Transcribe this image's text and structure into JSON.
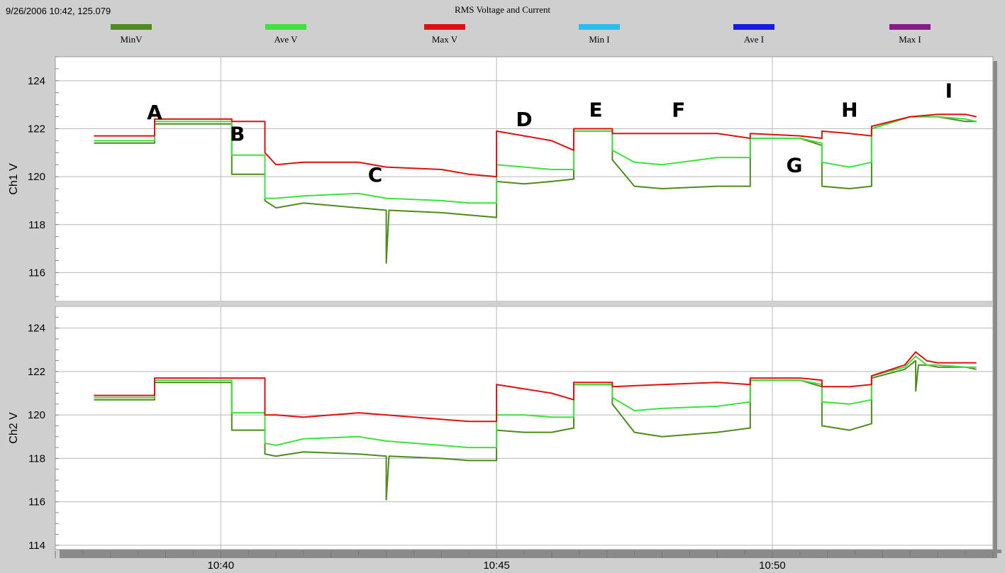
{
  "header": {
    "status": "9/26/2006 10:42, 125.079"
  },
  "chart_data": {
    "type": "line",
    "title": "RMS Voltage and Current",
    "legend_position": "top",
    "grid": true,
    "legend": [
      {
        "name": "MinV",
        "color": "#4e8a1e"
      },
      {
        "name": "Ave V",
        "color": "#3fe03f"
      },
      {
        "name": "Max V",
        "color": "#dd1111"
      },
      {
        "name": "Min I",
        "color": "#2bbcf0"
      },
      {
        "name": "Ave I",
        "color": "#1a1adc"
      },
      {
        "name": "Max I",
        "color": "#8a1a8a"
      }
    ],
    "x_ticks": [
      "10:40",
      "10:45",
      "10:50"
    ],
    "x_tick_minutes": [
      40,
      45,
      50
    ],
    "x_range_minutes": [
      37,
      54
    ],
    "panels": [
      {
        "ylabel": "Ch1 V",
        "ylim": [
          114.8,
          125
        ],
        "y_ticks": [
          116,
          118,
          120,
          122,
          124
        ],
        "annotations": [
          {
            "text": "A",
            "x": 38.8,
            "y": 122.4
          },
          {
            "text": "B",
            "x": 40.3,
            "y": 121.5
          },
          {
            "text": "C",
            "x": 42.8,
            "y": 119.8
          },
          {
            "text": "D",
            "x": 45.5,
            "y": 122.1
          },
          {
            "text": "E",
            "x": 46.8,
            "y": 122.5
          },
          {
            "text": "F",
            "x": 48.3,
            "y": 122.5
          },
          {
            "text": "G",
            "x": 50.4,
            "y": 120.2
          },
          {
            "text": "H",
            "x": 51.4,
            "y": 122.5
          },
          {
            "text": "I",
            "x": 53.2,
            "y": 123.3
          }
        ],
        "series": [
          {
            "name": "Max V",
            "x": [
              37.7,
              38.8,
              38.8,
              40.2,
              40.2,
              40.8,
              40.8,
              41.0,
              41.5,
              42.5,
              43.0,
              44.0,
              44.5,
              45.0,
              45.0,
              45.5,
              46.0,
              46.4,
              46.4,
              47.1,
              47.1,
              48.0,
              49.0,
              49.6,
              49.6,
              50.5,
              50.9,
              50.9,
              51.4,
              51.8,
              51.8,
              52.5,
              53.0,
              53.5,
              53.7
            ],
            "y": [
              121.7,
              121.7,
              122.4,
              122.4,
              122.3,
              122.3,
              121.0,
              120.5,
              120.6,
              120.6,
              120.4,
              120.3,
              120.1,
              120.0,
              121.9,
              121.7,
              121.5,
              121.1,
              122.0,
              122.0,
              121.8,
              121.8,
              121.8,
              121.6,
              121.8,
              121.7,
              121.6,
              121.9,
              121.8,
              121.7,
              122.1,
              122.5,
              122.6,
              122.6,
              122.5
            ]
          },
          {
            "name": "Ave V",
            "x": [
              37.7,
              38.8,
              38.8,
              40.2,
              40.2,
              40.8,
              40.8,
              41.0,
              41.5,
              42.5,
              43.0,
              44.0,
              44.5,
              45.0,
              45.0,
              45.5,
              46.0,
              46.4,
              46.4,
              47.1,
              47.1,
              47.5,
              48.0,
              49.0,
              49.6,
              49.6,
              50.5,
              50.9,
              50.9,
              51.4,
              51.8,
              51.8,
              52.5,
              53.0,
              53.5,
              53.7
            ],
            "y": [
              121.5,
              121.5,
              122.3,
              122.3,
              120.9,
              120.9,
              119.1,
              119.1,
              119.2,
              119.3,
              119.1,
              119.0,
              118.9,
              118.9,
              120.5,
              120.4,
              120.3,
              120.3,
              121.9,
              121.9,
              121.1,
              120.6,
              120.5,
              120.8,
              120.8,
              121.6,
              121.6,
              121.4,
              120.6,
              120.4,
              120.6,
              122.0,
              122.5,
              122.5,
              122.4,
              122.3
            ]
          },
          {
            "name": "MinV",
            "x": [
              37.7,
              38.8,
              38.8,
              40.2,
              40.2,
              40.8,
              40.8,
              41.0,
              41.5,
              42.5,
              43.0,
              43.0,
              43.05,
              43.05,
              44.0,
              44.5,
              45.0,
              45.0,
              45.5,
              46.0,
              46.4,
              46.4,
              47.1,
              47.1,
              47.5,
              48.0,
              49.0,
              49.6,
              49.6,
              50.5,
              50.9,
              50.9,
              51.4,
              51.8,
              51.8,
              52.5,
              53.0,
              53.5,
              53.7
            ],
            "y": [
              121.4,
              121.4,
              122.2,
              122.2,
              120.1,
              120.1,
              119.0,
              118.7,
              118.9,
              118.7,
              118.6,
              116.4,
              118.6,
              118.6,
              118.5,
              118.4,
              118.3,
              119.8,
              119.7,
              119.8,
              119.9,
              121.9,
              121.9,
              120.7,
              119.6,
              119.5,
              119.6,
              119.6,
              121.6,
              121.6,
              121.3,
              119.6,
              119.5,
              119.6,
              122.0,
              122.5,
              122.5,
              122.3,
              122.3
            ]
          }
        ]
      },
      {
        "ylabel": "Ch2 V",
        "ylim": [
          113.8,
          125
        ],
        "y_ticks": [
          114,
          116,
          118,
          120,
          122,
          124
        ],
        "annotations": [],
        "series": [
          {
            "name": "Max V",
            "x": [
              37.7,
              38.8,
              38.8,
              40.2,
              40.2,
              40.8,
              40.8,
              41.0,
              41.5,
              42.5,
              43.0,
              44.0,
              44.5,
              45.0,
              45.0,
              45.5,
              46.0,
              46.4,
              46.4,
              47.1,
              47.1,
              48.0,
              49.0,
              49.6,
              49.6,
              50.5,
              50.9,
              50.9,
              51.4,
              51.8,
              51.8,
              52.4,
              52.6,
              52.8,
              53.0,
              53.5,
              53.7
            ],
            "y": [
              120.9,
              120.9,
              121.7,
              121.7,
              121.7,
              121.7,
              120.0,
              120.0,
              119.9,
              120.1,
              120.0,
              119.8,
              119.7,
              119.7,
              121.4,
              121.2,
              121.0,
              120.7,
              121.5,
              121.5,
              121.3,
              121.4,
              121.5,
              121.4,
              121.7,
              121.7,
              121.6,
              121.3,
              121.3,
              121.4,
              121.8,
              122.3,
              122.9,
              122.5,
              122.4,
              122.4,
              122.4
            ]
          },
          {
            "name": "Ave V",
            "x": [
              37.7,
              38.8,
              38.8,
              40.2,
              40.2,
              40.8,
              40.8,
              41.0,
              41.5,
              42.5,
              43.0,
              44.0,
              44.5,
              45.0,
              45.0,
              45.5,
              46.0,
              46.4,
              46.4,
              47.1,
              47.1,
              47.5,
              48.0,
              49.0,
              49.6,
              49.6,
              50.5,
              50.9,
              50.9,
              51.4,
              51.8,
              51.8,
              52.4,
              52.6,
              52.8,
              53.0,
              53.5,
              53.7
            ],
            "y": [
              120.8,
              120.8,
              121.6,
              121.6,
              120.1,
              120.1,
              118.7,
              118.6,
              118.9,
              119.0,
              118.8,
              118.6,
              118.5,
              118.5,
              120.0,
              120.0,
              119.9,
              119.9,
              121.4,
              121.4,
              120.8,
              120.2,
              120.3,
              120.4,
              120.6,
              121.6,
              121.6,
              121.4,
              120.6,
              120.5,
              120.7,
              121.8,
              122.2,
              122.7,
              122.3,
              122.3,
              122.2,
              122.2
            ]
          },
          {
            "name": "MinV",
            "x": [
              37.7,
              38.8,
              38.8,
              40.2,
              40.2,
              40.8,
              40.8,
              41.0,
              41.5,
              42.5,
              43.0,
              43.0,
              43.05,
              43.05,
              44.0,
              44.5,
              45.0,
              45.0,
              45.5,
              46.0,
              46.4,
              46.4,
              47.1,
              47.1,
              47.5,
              48.0,
              49.0,
              49.6,
              49.6,
              50.5,
              50.9,
              50.9,
              51.4,
              51.8,
              51.8,
              52.4,
              52.6,
              52.6,
              52.65,
              52.8,
              53.0,
              53.5,
              53.7
            ],
            "y": [
              120.7,
              120.7,
              121.5,
              121.5,
              119.3,
              119.3,
              118.2,
              118.1,
              118.3,
              118.2,
              118.1,
              116.1,
              118.1,
              118.1,
              118.0,
              117.9,
              117.9,
              119.3,
              119.2,
              119.2,
              119.4,
              121.4,
              121.4,
              120.5,
              119.2,
              119.0,
              119.2,
              119.4,
              121.6,
              121.6,
              121.3,
              119.5,
              119.3,
              119.6,
              121.7,
              122.1,
              122.5,
              121.1,
              122.3,
              122.3,
              122.2,
              122.2,
              122.1
            ]
          }
        ]
      }
    ]
  }
}
